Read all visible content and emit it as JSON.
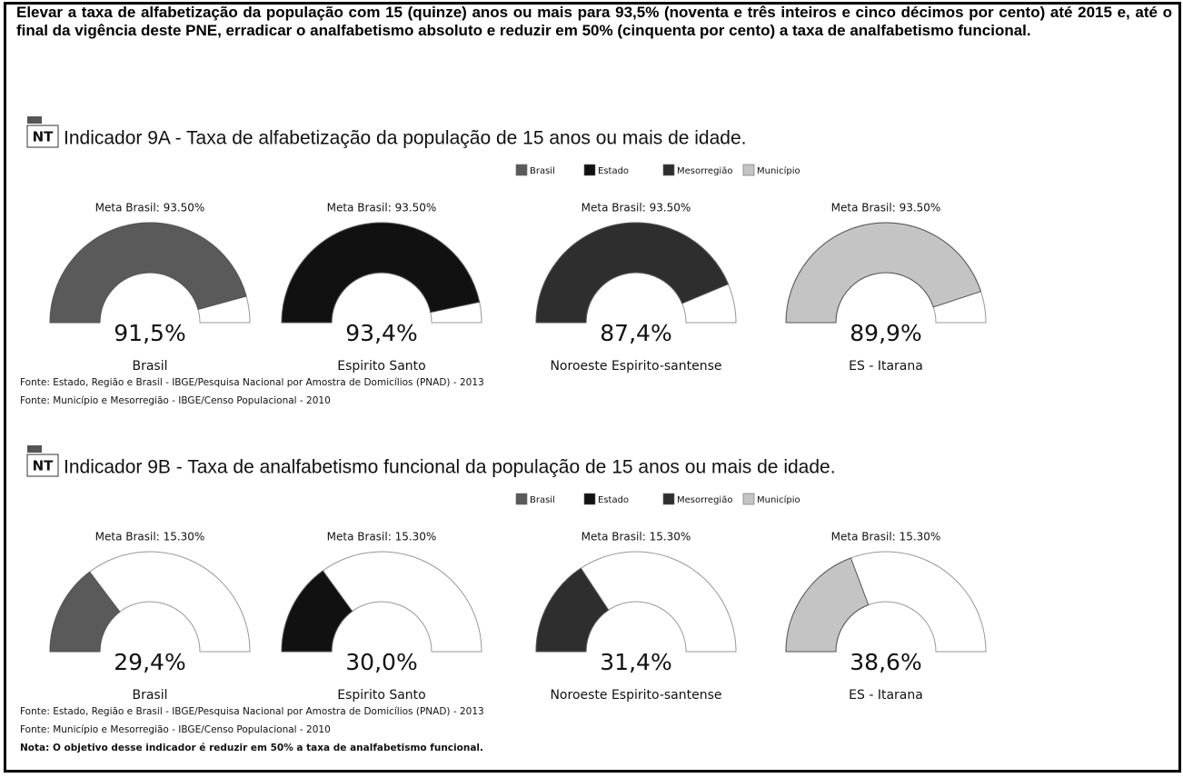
{
  "header": {
    "text": "Elevar a taxa de alfabetização da população com 15 (quinze) anos ou mais para 93,5% (noventa e três inteiros e cinco décimos por cento) até 2015 e, até o final da vigência deste PNE, erradicar o analfabetismo absoluto e reduzir em 50% (cinquenta por cento) a taxa de analfabetismo funcional."
  },
  "sections": [
    {
      "icon": "NT",
      "title": "Indicador 9A - Taxa de alfabetização da população de 15 anos ou mais de idade.",
      "legend": [
        {
          "name": "Brasil",
          "color": "#5a5a5a"
        },
        {
          "name": "Estado",
          "color": "#111111"
        },
        {
          "name": "Mesorregião",
          "color": "#2e2e2e"
        },
        {
          "name": "Município",
          "color": "#c4c4c4"
        }
      ],
      "gauges": [
        {
          "type": "gauge",
          "title": "Meta Brasil: 93.50%",
          "name": "Brasil",
          "values": [
            91.5
          ],
          "value_labels": [
            "91,5%"
          ],
          "color": "#5a5a5a",
          "ylim": [
            0,
            100
          ]
        },
        {
          "type": "gauge",
          "title": "Meta Brasil: 93.50%",
          "name": "Espirito Santo",
          "values": [
            93.4
          ],
          "value_labels": [
            "93,4%"
          ],
          "color": "#111111",
          "ylim": [
            0,
            100
          ]
        },
        {
          "type": "gauge",
          "title": "Meta Brasil: 93.50%",
          "name": "Noroeste Espirito-santense",
          "values": [
            87.4
          ],
          "value_labels": [
            "87,4%"
          ],
          "color": "#2e2e2e",
          "ylim": [
            0,
            100
          ]
        },
        {
          "type": "gauge",
          "title": "Meta Brasil: 93.50%",
          "name": "ES - Itarana",
          "values": [
            89.9
          ],
          "value_labels": [
            "89,9%"
          ],
          "color": "#c4c4c4",
          "ylim": [
            0,
            100
          ]
        }
      ],
      "notes": [
        "Fonte: Estado, Região e Brasil - IBGE/Pesquisa Nacional por Amostra de Domicílios (PNAD) - 2013",
        "Fonte: Município e Mesorregião - IBGE/Censo Populacional - 2010"
      ]
    },
    {
      "icon": "NT",
      "title": "Indicador 9B - Taxa de analfabetismo funcional da população de 15 anos ou mais de idade.",
      "legend": [
        {
          "name": "Brasil",
          "color": "#5a5a5a"
        },
        {
          "name": "Estado",
          "color": "#111111"
        },
        {
          "name": "Mesorregião",
          "color": "#2e2e2e"
        },
        {
          "name": "Município",
          "color": "#c4c4c4"
        }
      ],
      "gauges": [
        {
          "type": "gauge",
          "title": "Meta Brasil: 15.30%",
          "name": "Brasil",
          "values": [
            29.4
          ],
          "value_labels": [
            "29,4%"
          ],
          "color": "#5a5a5a",
          "ylim": [
            0,
            100
          ]
        },
        {
          "type": "gauge",
          "title": "Meta Brasil: 15.30%",
          "name": "Espirito Santo",
          "values": [
            30.0
          ],
          "value_labels": [
            "30,0%"
          ],
          "color": "#111111",
          "ylim": [
            0,
            100
          ]
        },
        {
          "type": "gauge",
          "title": "Meta Brasil: 15.30%",
          "name": "Noroeste Espirito-santense",
          "values": [
            31.4
          ],
          "value_labels": [
            "31,4%"
          ],
          "color": "#2e2e2e",
          "ylim": [
            0,
            100
          ]
        },
        {
          "type": "gauge",
          "title": "Meta Brasil: 15.30%",
          "name": "ES - Itarana",
          "values": [
            38.6
          ],
          "value_labels": [
            "38,6%"
          ],
          "color": "#c4c4c4",
          "ylim": [
            0,
            100
          ]
        }
      ],
      "notes": [
        "Fonte: Estado, Região e Brasil - IBGE/Pesquisa Nacional por Amostra de Domicílios (PNAD) - 2013",
        "Fonte: Município e Mesorregião - IBGE/Censo Populacional - 2010",
        "Nota: O objetivo desse indicador é reduzir em 50% a taxa de analfabetismo funcional."
      ]
    }
  ]
}
